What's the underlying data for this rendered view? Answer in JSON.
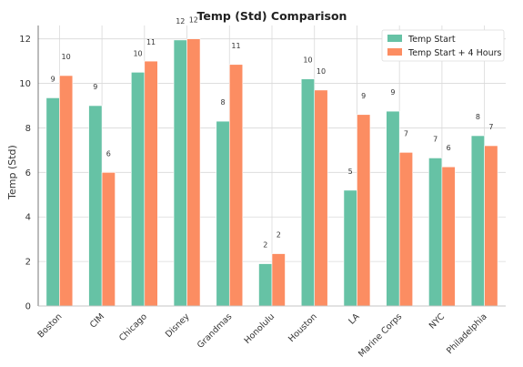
{
  "chart_data": {
    "type": "bar",
    "title": "Temp (Std) Comparison",
    "xlabel": "",
    "ylabel": "Temp (Std)",
    "ylim": [
      0,
      12.6
    ],
    "yticks": [
      0,
      2,
      4,
      6,
      8,
      10,
      12
    ],
    "grid": true,
    "legend_position": "top-right",
    "categories": [
      "Boston",
      "CIM",
      "Chicago",
      "Disney",
      "Grandmas",
      "Honolulu",
      "Houston",
      "LA",
      "Marine Corps",
      "NYC",
      "Philadelphia"
    ],
    "series": [
      {
        "name": "Temp Start",
        "color": "#66c2a5",
        "values": [
          9.35,
          9.0,
          10.5,
          11.95,
          8.3,
          1.9,
          10.2,
          5.2,
          8.75,
          6.65,
          7.65
        ],
        "labels": [
          "9",
          "9",
          "10",
          "12",
          "8",
          "2",
          "10",
          "5",
          "9",
          "7",
          "8"
        ]
      },
      {
        "name": "Temp Start + 4 Hours",
        "color": "#fc8d62",
        "values": [
          10.35,
          6.0,
          11.0,
          12.0,
          10.85,
          2.35,
          9.7,
          8.6,
          6.9,
          6.25,
          7.2
        ],
        "labels": [
          "10",
          "6",
          "11",
          "12",
          "11",
          "2",
          "10",
          "9",
          "7",
          "6",
          "7"
        ]
      }
    ]
  }
}
